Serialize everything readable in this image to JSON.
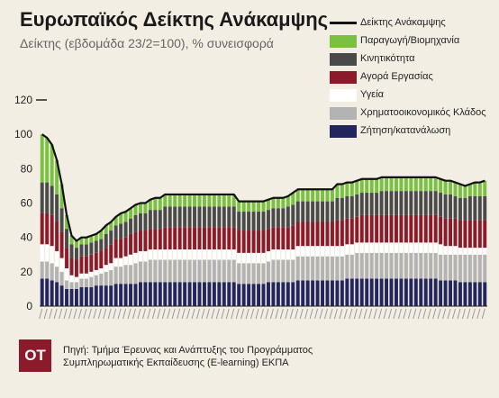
{
  "header": {
    "title": "Ευρωπαϊκός Δείκτης Ανάκαμψης",
    "subtitle": "Δείκτης (εβδομάδα 23/2=100), % συνεισφορά"
  },
  "legend": {
    "items": [
      {
        "label": "Δείκτης Ανάκαμψης",
        "kind": "line",
        "color": "#111111"
      },
      {
        "label": "Παραγωγή/Βιομηχανία",
        "kind": "box",
        "color": "#7ac142"
      },
      {
        "label": "Κινητικότητα",
        "kind": "box",
        "color": "#4a4a4a"
      },
      {
        "label": "Αγορά Εργασίας",
        "kind": "box",
        "color": "#8b1a2b"
      },
      {
        "label": "Υγεία",
        "kind": "box",
        "color": "#ffffff"
      },
      {
        "label": "Χρηματοοικονομικός Κλάδος",
        "kind": "box",
        "color": "#b3b3b3"
      },
      {
        "label": "Ζήτηση/κατανάλωση",
        "kind": "box",
        "color": "#23265e"
      }
    ]
  },
  "footer": {
    "logo": "OT",
    "source_line1": "Πηγή: Τμήμα Έρευνας και Ανάπτυξης του Προγράμματος",
    "source_line2": "Συμπληρωματικής Εκπαίδευσης (E-learning) ΕΚΠΑ"
  },
  "chart_data": {
    "type": "bar",
    "stacked": true,
    "ylim": [
      0,
      120
    ],
    "yticks": [
      "0",
      "20",
      "40",
      "60",
      "80",
      "100",
      "120"
    ],
    "series": [
      {
        "name": "Ζήτηση/κατανάλωση",
        "color": "#23265e",
        "values": [
          16,
          16,
          15,
          14,
          12,
          10,
          10,
          10,
          11,
          11,
          11,
          12,
          12,
          12,
          12,
          13,
          13,
          13,
          13,
          13,
          14,
          14,
          14,
          14,
          14,
          14,
          14,
          14,
          14,
          14,
          14,
          14,
          14,
          14,
          14,
          14,
          14,
          14,
          14,
          14,
          13,
          13,
          13,
          13,
          13,
          13,
          14,
          14,
          14,
          14,
          14,
          14,
          15,
          15,
          15,
          15,
          15,
          15,
          15,
          15,
          15,
          15,
          16,
          16,
          16,
          16,
          16,
          16,
          16,
          16,
          16,
          16,
          16,
          16,
          16,
          16,
          16,
          16,
          16,
          16,
          16,
          15,
          15,
          15,
          15,
          14,
          14,
          14,
          14,
          14,
          14
        ]
      },
      {
        "name": "Χρηματοοικονομικός Κλάδος",
        "color": "#b3b3b3",
        "values": [
          10,
          10,
          10,
          9,
          8,
          5,
          4,
          4,
          5,
          5,
          6,
          6,
          7,
          8,
          9,
          10,
          10,
          11,
          11,
          12,
          12,
          12,
          13,
          13,
          13,
          13,
          13,
          13,
          13,
          13,
          13,
          13,
          13,
          13,
          13,
          13,
          13,
          13,
          13,
          13,
          12,
          12,
          12,
          12,
          12,
          12,
          12,
          13,
          13,
          13,
          13,
          13,
          14,
          14,
          14,
          14,
          14,
          14,
          14,
          14,
          14,
          14,
          14,
          14,
          15,
          15,
          15,
          15,
          15,
          15,
          15,
          15,
          15,
          15,
          15,
          15,
          15,
          15,
          15,
          15,
          15,
          15,
          15,
          15,
          15,
          16,
          16,
          16,
          16,
          16,
          16
        ]
      },
      {
        "name": "Υγεία",
        "color": "#ffffff",
        "values": [
          10,
          10,
          10,
          9,
          8,
          7,
          4,
          3,
          3,
          3,
          3,
          3,
          3,
          4,
          4,
          5,
          5,
          5,
          6,
          6,
          6,
          6,
          6,
          6,
          6,
          6,
          6,
          6,
          6,
          6,
          6,
          6,
          6,
          6,
          6,
          6,
          6,
          6,
          6,
          6,
          6,
          6,
          6,
          6,
          6,
          6,
          6,
          6,
          6,
          6,
          6,
          6,
          6,
          6,
          6,
          6,
          6,
          6,
          6,
          6,
          6,
          6,
          6,
          6,
          6,
          6,
          6,
          6,
          6,
          6,
          6,
          6,
          6,
          6,
          6,
          6,
          6,
          6,
          6,
          6,
          6,
          6,
          5,
          5,
          5,
          4,
          4,
          4,
          4,
          4,
          4
        ]
      },
      {
        "name": "Αγορά Εργασίας",
        "color": "#8b1a2b",
        "values": [
          18,
          18,
          18,
          17,
          15,
          12,
          10,
          10,
          10,
          10,
          10,
          10,
          10,
          10,
          11,
          11,
          11,
          11,
          12,
          12,
          12,
          12,
          12,
          12,
          12,
          13,
          13,
          13,
          13,
          13,
          13,
          13,
          13,
          13,
          13,
          13,
          13,
          13,
          13,
          13,
          13,
          13,
          13,
          13,
          13,
          13,
          13,
          13,
          13,
          13,
          13,
          14,
          14,
          14,
          14,
          14,
          14,
          14,
          14,
          14,
          15,
          15,
          15,
          15,
          15,
          16,
          16,
          16,
          16,
          16,
          16,
          16,
          16,
          16,
          16,
          16,
          16,
          16,
          16,
          16,
          16,
          16,
          16,
          16,
          16,
          16,
          16,
          16,
          16,
          16,
          16
        ]
      },
      {
        "name": "Κινητικότητα",
        "color": "#4a4a4a",
        "values": [
          18,
          18,
          17,
          16,
          14,
          11,
          8,
          7,
          7,
          7,
          7,
          7,
          7,
          8,
          8,
          8,
          9,
          9,
          9,
          10,
          10,
          10,
          11,
          11,
          11,
          12,
          12,
          12,
          12,
          12,
          12,
          12,
          12,
          12,
          12,
          12,
          12,
          12,
          12,
          12,
          11,
          11,
          11,
          11,
          11,
          11,
          11,
          11,
          11,
          11,
          12,
          12,
          12,
          12,
          12,
          12,
          12,
          12,
          12,
          12,
          13,
          13,
          13,
          13,
          13,
          13,
          13,
          13,
          13,
          14,
          14,
          14,
          14,
          14,
          14,
          14,
          14,
          14,
          14,
          14,
          14,
          14,
          14,
          14,
          13,
          13,
          13,
          14,
          14,
          14,
          14
        ]
      },
      {
        "name": "Παραγωγή/Βιομηχανία",
        "color": "#7ac142",
        "values": [
          28,
          26,
          24,
          20,
          14,
          8,
          5,
          4,
          4,
          4,
          4,
          4,
          5,
          5,
          5,
          5,
          6,
          6,
          6,
          6,
          6,
          6,
          6,
          7,
          7,
          7,
          7,
          7,
          7,
          7,
          7,
          7,
          7,
          7,
          7,
          7,
          7,
          7,
          7,
          7,
          6,
          6,
          6,
          6,
          6,
          6,
          6,
          6,
          6,
          6,
          6,
          7,
          7,
          7,
          7,
          7,
          7,
          7,
          7,
          7,
          8,
          8,
          8,
          8,
          8,
          8,
          8,
          8,
          8,
          8,
          8,
          8,
          8,
          8,
          8,
          8,
          8,
          8,
          8,
          8,
          8,
          8,
          8,
          8,
          8,
          8,
          7,
          7,
          8,
          8,
          9
        ]
      }
    ],
    "index_line": {
      "name": "Δείκτης Ανάκαμψης",
      "values": [
        100,
        98,
        94,
        85,
        71,
        53,
        41,
        38,
        40,
        40,
        41,
        42,
        44,
        47,
        49,
        52,
        54,
        55,
        57,
        59,
        60,
        60,
        62,
        63,
        63,
        65,
        65,
        65,
        65,
        65,
        65,
        65,
        65,
        65,
        65,
        65,
        65,
        65,
        65,
        65,
        61,
        61,
        61,
        61,
        61,
        61,
        62,
        63,
        63,
        63,
        64,
        66,
        68,
        68,
        68,
        68,
        68,
        68,
        68,
        68,
        71,
        71,
        72,
        72,
        73,
        74,
        74,
        74,
        74,
        75,
        75,
        75,
        75,
        75,
        75,
        75,
        75,
        75,
        75,
        75,
        75,
        74,
        73,
        73,
        72,
        71,
        70,
        71,
        72,
        72,
        73
      ]
    }
  }
}
